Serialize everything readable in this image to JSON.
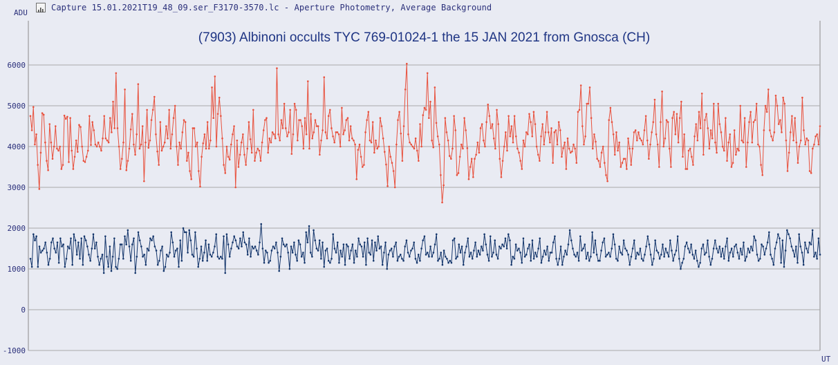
{
  "window": {
    "title": "Capture 15.01.2021T19_48_09.ser_F3170-3570.lc - Aperture Photometry, Average Background",
    "icon": "chart-window-icon"
  },
  "chart_data": {
    "type": "line",
    "title": "(7903) Albinoni occults TYC  769-01024-1 the 15 JAN 2021 from Gnosca (CH)",
    "ylabel": "ADU",
    "xlabel": "UT",
    "ylim": [
      -1000,
      6600
    ],
    "yticks": [
      6000,
      5000,
      4000,
      3000,
      2000,
      1000,
      0,
      -1000
    ],
    "grid": true,
    "colors": {
      "comparison": "#e8503c",
      "target": "#13356b",
      "grid": "#a9a9a9",
      "background": "#e9ebf3"
    },
    "series": [
      {
        "color": "#e8503c",
        "x_start": 0,
        "values": [
          4750,
          4400,
          4970,
          4050,
          4300,
          3550,
          2960,
          3850,
          4820,
          4780,
          4100,
          3650,
          3420,
          4550,
          4100,
          3700,
          4000,
          4500,
          3950,
          3900,
          4000,
          3450,
          3550,
          4760,
          4680,
          4730,
          3620,
          4700,
          3900,
          3450,
          3750,
          4150,
          3870,
          4530,
          4480,
          4000,
          3650,
          3620,
          3750,
          3900,
          4750,
          4040,
          4600,
          4400,
          4050,
          4000,
          4100,
          4000,
          3900,
          4200,
          4750,
          4200,
          4150,
          4100,
          4700,
          4350,
          5100,
          4450,
          5800,
          4450,
          4000,
          3450,
          3700,
          4100,
          5400,
          3420,
          3650,
          3950,
          4420,
          4800,
          4050,
          3800,
          4300,
          5530,
          3950,
          4050,
          4500,
          3150,
          4100,
          4900,
          3970,
          4150,
          4650,
          4900,
          5220,
          4300,
          3880,
          3550,
          4600,
          3900,
          4000,
          4100,
          4500,
          4200,
          4900,
          3950,
          4300,
          4700,
          5000,
          4000,
          3550,
          4100,
          3950,
          4350,
          4650,
          4600,
          3650,
          3850,
          3400,
          3200,
          4450,
          4450,
          4000,
          4100,
          3400,
          3020,
          3750,
          4080,
          4300,
          3950,
          4600,
          3950,
          4150,
          5450,
          4700,
          5720,
          4000,
          4800,
          5200,
          4750,
          4200,
          3550,
          3350,
          4000,
          3750,
          3680,
          4050,
          4300,
          4500,
          3000,
          4150,
          3500,
          3800,
          4100,
          4300,
          3800,
          3550,
          3950,
          4600,
          4180,
          3850,
          4900,
          3650,
          3850,
          3950,
          3900,
          3650,
          4100,
          4400,
          4650,
          4700,
          3850,
          4200,
          4100,
          4350,
          4300,
          4200,
          5920,
          4300,
          4150,
          4650,
          4450,
          5050,
          4450,
          4250,
          4350,
          4900,
          3820,
          4300,
          5050,
          4900,
          4150,
          4650,
          4650,
          4500,
          3950,
          4700,
          4300,
          5600,
          3950,
          4800,
          4200,
          4350,
          4650,
          4500,
          4500,
          3800,
          4150,
          4400,
          5700,
          4350,
          4200,
          4750,
          4900,
          4450,
          4250,
          4100,
          4350,
          4350,
          4300,
          4000,
          4950,
          4300,
          4400,
          4650,
          4700,
          4150,
          4500,
          4200,
          4150,
          4050,
          3200,
          3920,
          4050,
          3750,
          3500,
          3550,
          4350,
          4650,
          4850,
          4150,
          4100,
          4600,
          3850,
          4150,
          3950,
          4000,
          4700,
          4500,
          4200,
          3870,
          3560,
          3030,
          4000,
          3750,
          3600,
          3400,
          3000,
          4050,
          4650,
          4850,
          4320,
          3650,
          4500,
          5400,
          6030,
          4300,
          4100,
          4050,
          4000,
          3950,
          4200,
          3900,
          3650,
          4550,
          4000,
          4770,
          4950,
          4900,
          5800,
          4700,
          5100,
          4150,
          3980,
          5450,
          4580,
          4250,
          4050,
          3300,
          2630,
          3050,
          4700,
          4350,
          4150,
          3770,
          3700,
          3950,
          4750,
          4400,
          3300,
          3350,
          3750,
          4050,
          3950,
          4700,
          4400,
          3960,
          3200,
          3500,
          3700,
          3250,
          3700,
          3800,
          4100,
          3850,
          4450,
          4550,
          4150,
          4000,
          4600,
          5030,
          4750,
          4450,
          4550,
          4200,
          3950,
          4900,
          4550,
          3700,
          3250,
          3650,
          4000,
          4350,
          3900,
          4750,
          4250,
          4500,
          4100,
          4750,
          4250,
          3950,
          3850,
          3650,
          3450,
          4150,
          4000,
          4350,
          4300,
          4800,
          4600,
          4250,
          4850,
          4550,
          4000,
          3800,
          3650,
          4250,
          4550,
          4050,
          4350,
          4850,
          4350,
          4100,
          4450,
          3600,
          4350,
          4400,
          4050,
          4600,
          4400,
          3750,
          3960,
          4100,
          3450,
          4200,
          3950,
          3850,
          3880,
          4050,
          3950,
          3600,
          4850,
          4900,
          5500,
          4500,
          4050,
          4250,
          5050,
          5050,
          5450,
          4700,
          3950,
          4300,
          4120,
          3700,
          3650,
          3500,
          3850,
          4000,
          3600,
          3300,
          3150,
          4650,
          4950,
          4600,
          4300,
          3800,
          4350,
          3900,
          4100,
          3500,
          3600,
          3700,
          3700,
          3450,
          4200,
          3950,
          3550,
          3950,
          4350,
          4400,
          4150,
          4350,
          4200,
          4150,
          4050,
          4400,
          4750,
          4150,
          3700,
          4050,
          4350,
          4600,
          5150,
          4300,
          4050,
          3500,
          4600,
          5350,
          4000,
          4200,
          4650,
          4600,
          3950,
          3500,
          4700,
          4850,
          4300,
          4800,
          4100,
          4700,
          5100,
          3750,
          4300,
          3450,
          3450,
          3900,
          3950,
          3750,
          3550,
          4250,
          4550,
          4150,
          4850,
          4450,
          5300,
          3800,
          4650,
          4800,
          4450,
          3950,
          4400,
          4200,
          5050,
          4100,
          3850,
          5050,
          4550,
          4350,
          4000,
          3900,
          4700,
          3650,
          4100,
          4300,
          3500,
          3600,
          4400,
          3800,
          3950,
          3900,
          5000,
          4150,
          4100,
          4700,
          3500,
          4100,
          4600,
          4850,
          4100,
          4600,
          4650,
          5050,
          4050,
          4000,
          3550,
          3300,
          4400,
          5000,
          4850,
          5400,
          4400,
          4250,
          4150,
          4350,
          5250,
          5000,
          4550,
          4650,
          4350,
          5200,
          5050,
          4150,
          3400,
          3850,
          4350,
          4750,
          4150,
          4700,
          4100,
          3600,
          4000,
          4150,
          5200,
          4400,
          4050,
          4200,
          4150,
          3400,
          3350,
          3950,
          4050,
          4250,
          4300,
          4050,
          4500
        ],
        "x_end": 573
      },
      {
        "color": "#13356b",
        "x_start": 0,
        "values": [
          1250,
          1050,
          1850,
          1700,
          1800,
          1050,
          1550,
          1400,
          1450,
          1500,
          1650,
          1400,
          1100,
          1250,
          1650,
          1750,
          1500,
          1400,
          1650,
          1150,
          1750,
          1550,
          1600,
          1050,
          1250,
          1550,
          1500,
          1750,
          1100,
          1850,
          1700,
          1350,
          1650,
          1250,
          1750,
          1100,
          1800,
          1700,
          1550,
          1350,
          1200,
          1500,
          1850,
          1500,
          1650,
          1300,
          1100,
          1250,
          1350,
          900,
          1800,
          1300,
          1050,
          1550,
          950,
          1300,
          1750,
          1050,
          1000,
          1250,
          1600,
          1600,
          1250,
          1800,
          1600,
          1950,
          1550,
          1200,
          1600,
          1750,
          900,
          1300,
          1900,
          1700,
          1550,
          1300,
          1350,
          1100,
          1500,
          1450,
          1750,
          1700,
          1800,
          1550,
          1450,
          1100,
          1200,
          1450,
          1550,
          950,
          1050,
          1350,
          1300,
          1400,
          1900,
          1650,
          1300,
          1450,
          1500,
          1050,
          1700,
          1200,
          2000,
          1900,
          1900,
          1400,
          1950,
          1700,
          1350,
          1300,
          1900,
          1500,
          1050,
          1250,
          1550,
          1200,
          1400,
          1700,
          1200,
          1600,
          1350,
          1300,
          1400,
          1550,
          1850,
          1300,
          1250,
          1300,
          1250,
          1800,
          900,
          1850,
          1600,
          1300,
          1500,
          1650,
          1800,
          1700,
          1550,
          1500,
          1750,
          1550,
          1900,
          1650,
          1600,
          1350,
          1750,
          1300,
          1550,
          1500,
          1550,
          1450,
          1350,
          1650,
          2100,
          1500,
          1150,
          1450,
          1400,
          1150,
          1200,
          1450,
          1550,
          1500,
          1650,
          1400,
          950,
          1300,
          1750,
          1600,
          1550,
          1600,
          1400,
          1000,
          1550,
          1400,
          1650,
          1350,
          1200,
          1700,
          1600,
          1300,
          1400,
          1150,
          1900,
          1650,
          2050,
          1400,
          1300,
          1950,
          1700,
          1500,
          1450,
          1700,
          1250,
          1650,
          1050,
          1450,
          1500,
          1200,
          1150,
          1250,
          1850,
          1500,
          1400,
          1650,
          1150,
          1450,
          1300,
          1600,
          1100,
          1600,
          1550,
          1250,
          1450,
          1600,
          1150,
          1450,
          1300,
          1750,
          1600,
          1550,
          1300,
          1650,
          1100,
          1750,
          1400,
          1350,
          1700,
          1200,
          1650,
          1450,
          1800,
          1500,
          1550,
          1100,
          1400,
          1650,
          1000,
          1350,
          1450,
          1500,
          1300,
          1550,
          1650,
          1200,
          1300,
          1350,
          1250,
          1200,
          1550,
          1700,
          1400,
          1300,
          1450,
          1500,
          1650,
          1250,
          1150,
          1350,
          1200,
          1500,
          1700,
          1800,
          1350,
          1400,
          1300,
          1550,
          1300,
          1400,
          1600,
          1850,
          1200,
          1250,
          1400,
          1100,
          1450,
          1300,
          1250,
          1150,
          1200,
          1150,
          1700,
          1750,
          1250,
          1300,
          1600,
          1400,
          1550,
          1100,
          1400,
          1550,
          1750,
          1300,
          1400,
          1250,
          1450,
          1650,
          1300,
          1450,
          1350,
          1550,
          1450,
          1850,
          1600,
          1350,
          1200,
          1800,
          1300,
          1400,
          1700,
          1350,
          1250,
          1550,
          1500,
          1600,
          1550,
          1750,
          1500,
          1850,
          1700,
          1100,
          1300,
          1250,
          1600,
          1450,
          1500,
          1400,
          1150,
          1750,
          1300,
          1350,
          1500,
          1600,
          1200,
          1700,
          1250,
          1400,
          1300,
          1500,
          1750,
          1150,
          1300,
          1450,
          1350,
          1550,
          1200,
          1400,
          1400,
          1650,
          1800,
          1250,
          1100,
          1250,
          1550,
          1100,
          1300,
          1450,
          1350,
          1600,
          1950,
          1700,
          1500,
          1350,
          1300,
          1400,
          1200,
          1800,
          1450,
          1500,
          1600,
          1250,
          1400,
          1200,
          1300,
          1900,
          1400,
          1700,
          1350,
          1200,
          1200,
          1450,
          1650,
          1750,
          1300,
          1350,
          1400,
          1300,
          1500,
          1850,
          1600,
          1250,
          1200,
          1550,
          1400,
          1350,
          1700,
          1500,
          1450,
          1350,
          1100,
          1300,
          1500,
          1700,
          1250,
          1400,
          1350,
          1500,
          1250,
          1200,
          1350,
          1550,
          1800,
          1600,
          1350,
          1100,
          1250,
          1700,
          1450,
          1400,
          1250,
          1350,
          1600,
          1300,
          1500,
          1400,
          1300,
          1700,
          1450,
          1200,
          1350,
          1450,
          1800,
          1250,
          1000,
          1150,
          1250,
          1550,
          1650,
          1500,
          1400,
          1600,
          1350,
          1250,
          1450,
          1200,
          1050,
          1150,
          1500,
          1600,
          1350,
          1400,
          1700,
          1300,
          1100,
          1250,
          1500,
          1700,
          1500,
          1400,
          1550,
          1300,
          1500,
          1250,
          1550,
          1750,
          1200,
          1400,
          1500,
          1300,
          1550,
          1600,
          1400,
          1250,
          1500,
          1350,
          1650,
          1200,
          1300,
          1500,
          1400,
          1550,
          1450,
          1800,
          1700,
          1350,
          1200,
          1250,
          1600,
          1550,
          1350,
          1500,
          1650,
          1900,
          1350,
          1250,
          1100,
          1500,
          1650,
          1850,
          1750,
          1150,
          1700,
          1050,
          1450,
          1950,
          1850,
          1750,
          1550,
          1450,
          1300,
          1550,
          1150,
          1850,
          1550,
          1400,
          1100,
          1650,
          1500,
          1400,
          1650,
          1600,
          1950,
          1300,
          1400,
          1250,
          1750,
          1350
        ],
        "x_end": 573
      }
    ]
  }
}
